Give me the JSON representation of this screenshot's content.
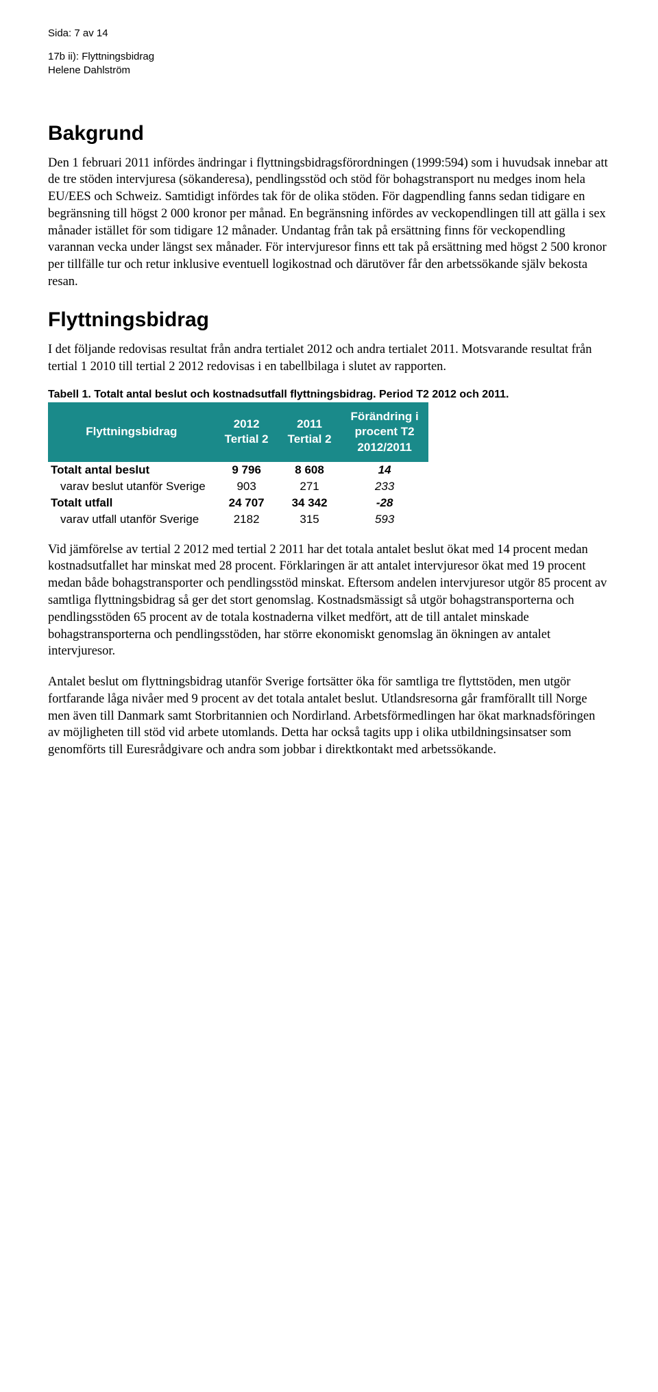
{
  "header": {
    "page_info": "Sida: 7 av 14",
    "item_ref": "17b ii): Flyttningsbidrag",
    "author": "Helene Dahlström"
  },
  "sections": {
    "bakgrund": {
      "title": "Bakgrund",
      "body": "Den 1 februari 2011 infördes ändringar i flyttningsbidragsförordningen (1999:594) som i huvudsak innebar att de tre stöden intervjuresa (sökanderesa), pendlingsstöd och stöd för bohagstransport nu medges inom hela EU/EES och Schweiz. Samtidigt infördes tak för de olika stöden. För dagpendling fanns sedan tidigare en begränsning till högst 2 000 kronor per månad. En begränsning infördes av veckopendlingen till att gälla i sex månader istället för som tidigare 12 månader. Undantag från tak på ersättning finns för veckopendling varannan vecka under längst sex månader. För intervjuresor finns ett tak på ersättning med högst 2 500 kronor per tillfälle tur och retur inklusive eventuell logikostnad och därutöver får den arbetssökande själv bekosta resan."
    },
    "flyttningsbidrag": {
      "title": "Flyttningsbidrag",
      "intro": "I det följande redovisas resultat från andra tertialet 2012 och andra tertialet 2011. Motsvarande resultat från tertial 1 2010 till tertial 2 2012 redovisas i en tabellbilaga i slutet av rapporten.",
      "post_table_p1": "Vid jämförelse av tertial 2 2012 med tertial 2 2011 har det totala antalet beslut ökat med 14 procent medan kostnadsutfallet har minskat med 28 procent. Förklaringen är att antalet intervjuresor ökat med 19 procent medan både bohagstransporter och pendlingsstöd minskat. Eftersom andelen intervjuresor utgör 85 procent av samtliga flyttningsbidrag så ger det stort genomslag. Kostnadsmässigt så utgör bohagstransporterna och pendlingsstöden 65 procent av de totala kostnaderna vilket medfört, att de till antalet minskade bohagstransporterna och pendlingsstöden, har större ekonomiskt genomslag än ökningen av antalet intervjuresor.",
      "post_table_p2": "Antalet beslut om flyttningsbidrag utanför Sverige fortsätter öka för samtliga tre flyttstöden, men utgör fortfarande låga nivåer med 9 procent av det totala antalet beslut. Utlandsresorna går framförallt till Norge men även till Danmark samt Storbritannien och Nordirland. Arbetsförmedlingen har ökat marknadsföringen av möjligheten till stöd vid arbete utomlands. Detta har också tagits upp i olika utbildningsinsatser som genomförts till Euresrådgivare och andra som jobbar i direktkontakt med arbetssökande."
    }
  },
  "table1": {
    "caption": "Tabell 1. Totalt antal beslut och kostnadsutfall flyttningsbidrag. Period T2 2012 och 2011.",
    "header_bg": "#1a8a8a",
    "header_fg": "#ffffff",
    "columns": {
      "c0": "Flyttningsbidrag",
      "c1_line1": "2012",
      "c1_line2": "Tertial 2",
      "c2_line1": "2011",
      "c2_line2": "Tertial 2",
      "c3_line1": "Förändring i",
      "c3_line2": "procent T2",
      "c3_line3": "2012/2011"
    },
    "rows": [
      {
        "label": "Totalt antal beslut",
        "v2012": "9 796",
        "v2011": "8 608",
        "delta": "14",
        "bold": true,
        "indent": false
      },
      {
        "label": "varav beslut utanför Sverige",
        "v2012": "903",
        "v2011": "271",
        "delta": "233",
        "bold": false,
        "indent": true
      },
      {
        "label": "Totalt utfall",
        "v2012": "24 707",
        "v2011": "34 342",
        "delta": "-28",
        "bold": true,
        "indent": false
      },
      {
        "label": "varav utfall utanför Sverige",
        "v2012": "2182",
        "v2011": "315",
        "delta": "593",
        "bold": false,
        "indent": true
      }
    ]
  }
}
